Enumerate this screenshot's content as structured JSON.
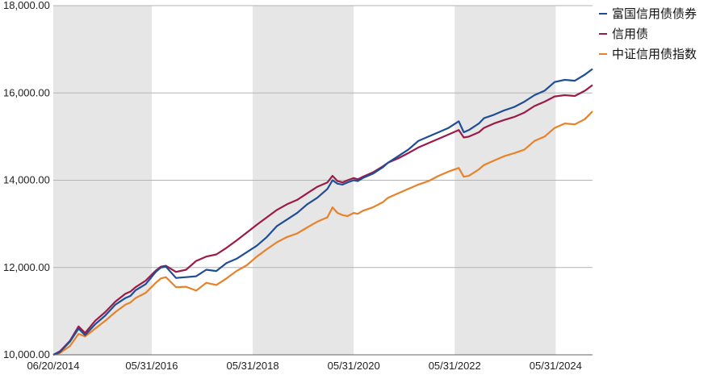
{
  "chart_data": {
    "type": "line",
    "title": "",
    "xlabel": "",
    "ylabel": "",
    "ylim": [
      10000,
      18000
    ],
    "y_ticks": [
      "10,000.00",
      "12,000.00",
      "14,000.00",
      "16,000.00",
      "18,000.00"
    ],
    "x_ticks": [
      "06/20/2014",
      "05/31/2016",
      "05/31/2018",
      "05/31/2020",
      "05/31/2022",
      "05/31/2024"
    ],
    "x_range": [
      2014.47,
      2025.15
    ],
    "shaded_periods": [
      [
        2014.47,
        2016.42
      ],
      [
        2018.42,
        2020.42
      ],
      [
        2022.42,
        2024.42
      ]
    ],
    "grid": "horizontal",
    "legend_position": "top-right",
    "series": [
      {
        "name": "富国信用债债券",
        "color": "#1f4e96",
        "x": [
          2014.47,
          2014.6,
          2014.8,
          2014.97,
          2015.1,
          2015.3,
          2015.5,
          2015.7,
          2015.9,
          2016.0,
          2016.1,
          2016.3,
          2016.5,
          2016.6,
          2016.7,
          2016.9,
          2017.1,
          2017.3,
          2017.5,
          2017.7,
          2017.9,
          2018.1,
          2018.3,
          2018.5,
          2018.7,
          2018.9,
          2019.1,
          2019.3,
          2019.5,
          2019.7,
          2019.9,
          2020.0,
          2020.1,
          2020.2,
          2020.3,
          2020.42,
          2020.5,
          2020.6,
          2020.8,
          2021.0,
          2021.1,
          2021.3,
          2021.5,
          2021.7,
          2021.9,
          2022.1,
          2022.3,
          2022.5,
          2022.6,
          2022.7,
          2022.9,
          2023.0,
          2023.2,
          2023.4,
          2023.6,
          2023.8,
          2024.0,
          2024.2,
          2024.4,
          2024.6,
          2024.8,
          2025.0,
          2025.15
        ],
        "y": [
          10000,
          10060,
          10300,
          10600,
          10450,
          10700,
          10900,
          11150,
          11300,
          11350,
          11480,
          11620,
          11900,
          12000,
          12020,
          11760,
          11780,
          11800,
          11950,
          11920,
          12100,
          12200,
          12350,
          12500,
          12700,
          12950,
          13100,
          13250,
          13450,
          13600,
          13800,
          14000,
          13920,
          13900,
          13950,
          14000,
          13980,
          14050,
          14150,
          14300,
          14400,
          14550,
          14700,
          14900,
          15000,
          15100,
          15200,
          15350,
          15100,
          15150,
          15300,
          15420,
          15500,
          15600,
          15680,
          15800,
          15950,
          16050,
          16250,
          16300,
          16280,
          16420,
          16550
        ]
      },
      {
        "name": "信用债",
        "color": "#9b1b47",
        "x": [
          2014.47,
          2014.6,
          2014.8,
          2014.97,
          2015.1,
          2015.3,
          2015.5,
          2015.7,
          2015.9,
          2016.0,
          2016.1,
          2016.3,
          2016.5,
          2016.6,
          2016.7,
          2016.9,
          2017.1,
          2017.3,
          2017.5,
          2017.7,
          2017.9,
          2018.1,
          2018.3,
          2018.5,
          2018.7,
          2018.9,
          2019.1,
          2019.3,
          2019.5,
          2019.7,
          2019.9,
          2020.0,
          2020.1,
          2020.2,
          2020.3,
          2020.42,
          2020.5,
          2020.6,
          2020.8,
          2021.0,
          2021.1,
          2021.3,
          2021.5,
          2021.7,
          2021.9,
          2022.1,
          2022.3,
          2022.5,
          2022.6,
          2022.7,
          2022.9,
          2023.0,
          2023.2,
          2023.4,
          2023.6,
          2023.8,
          2024.0,
          2024.2,
          2024.4,
          2024.6,
          2024.8,
          2025.0,
          2025.15
        ],
        "y": [
          10000,
          10080,
          10320,
          10650,
          10500,
          10780,
          10980,
          11220,
          11400,
          11450,
          11550,
          11700,
          11930,
          12020,
          12040,
          11900,
          11950,
          12150,
          12250,
          12300,
          12450,
          12620,
          12800,
          12980,
          13150,
          13320,
          13450,
          13550,
          13700,
          13850,
          13950,
          14100,
          13980,
          13950,
          14000,
          14050,
          14020,
          14080,
          14180,
          14320,
          14400,
          14500,
          14620,
          14750,
          14850,
          14950,
          15050,
          15150,
          14980,
          15000,
          15100,
          15200,
          15300,
          15380,
          15450,
          15550,
          15700,
          15800,
          15920,
          15950,
          15930,
          16050,
          16180
        ]
      },
      {
        "name": "中证信用债指数",
        "color": "#e8822a",
        "x": [
          2014.47,
          2014.6,
          2014.8,
          2014.97,
          2015.1,
          2015.3,
          2015.5,
          2015.7,
          2015.9,
          2016.0,
          2016.1,
          2016.3,
          2016.5,
          2016.6,
          2016.7,
          2016.9,
          2017.1,
          2017.3,
          2017.5,
          2017.7,
          2017.9,
          2018.1,
          2018.3,
          2018.5,
          2018.7,
          2018.9,
          2019.1,
          2019.3,
          2019.5,
          2019.7,
          2019.9,
          2020.0,
          2020.1,
          2020.2,
          2020.3,
          2020.42,
          2020.5,
          2020.6,
          2020.8,
          2021.0,
          2021.1,
          2021.3,
          2021.5,
          2021.7,
          2021.9,
          2022.1,
          2022.3,
          2022.5,
          2022.6,
          2022.7,
          2022.9,
          2023.0,
          2023.2,
          2023.4,
          2023.6,
          2023.8,
          2024.0,
          2024.2,
          2024.4,
          2024.6,
          2024.8,
          2025.0,
          2025.15
        ],
        "y": [
          10000,
          10040,
          10200,
          10480,
          10420,
          10600,
          10780,
          10980,
          11150,
          11200,
          11300,
          11420,
          11650,
          11750,
          11780,
          11550,
          11560,
          11470,
          11650,
          11600,
          11750,
          11920,
          12050,
          12250,
          12420,
          12580,
          12700,
          12780,
          12920,
          13050,
          13150,
          13380,
          13250,
          13200,
          13180,
          13250,
          13230,
          13300,
          13380,
          13500,
          13600,
          13700,
          13800,
          13900,
          13980,
          14100,
          14200,
          14280,
          14080,
          14100,
          14250,
          14350,
          14450,
          14550,
          14620,
          14700,
          14900,
          15000,
          15200,
          15300,
          15280,
          15400,
          15580
        ]
      }
    ]
  }
}
